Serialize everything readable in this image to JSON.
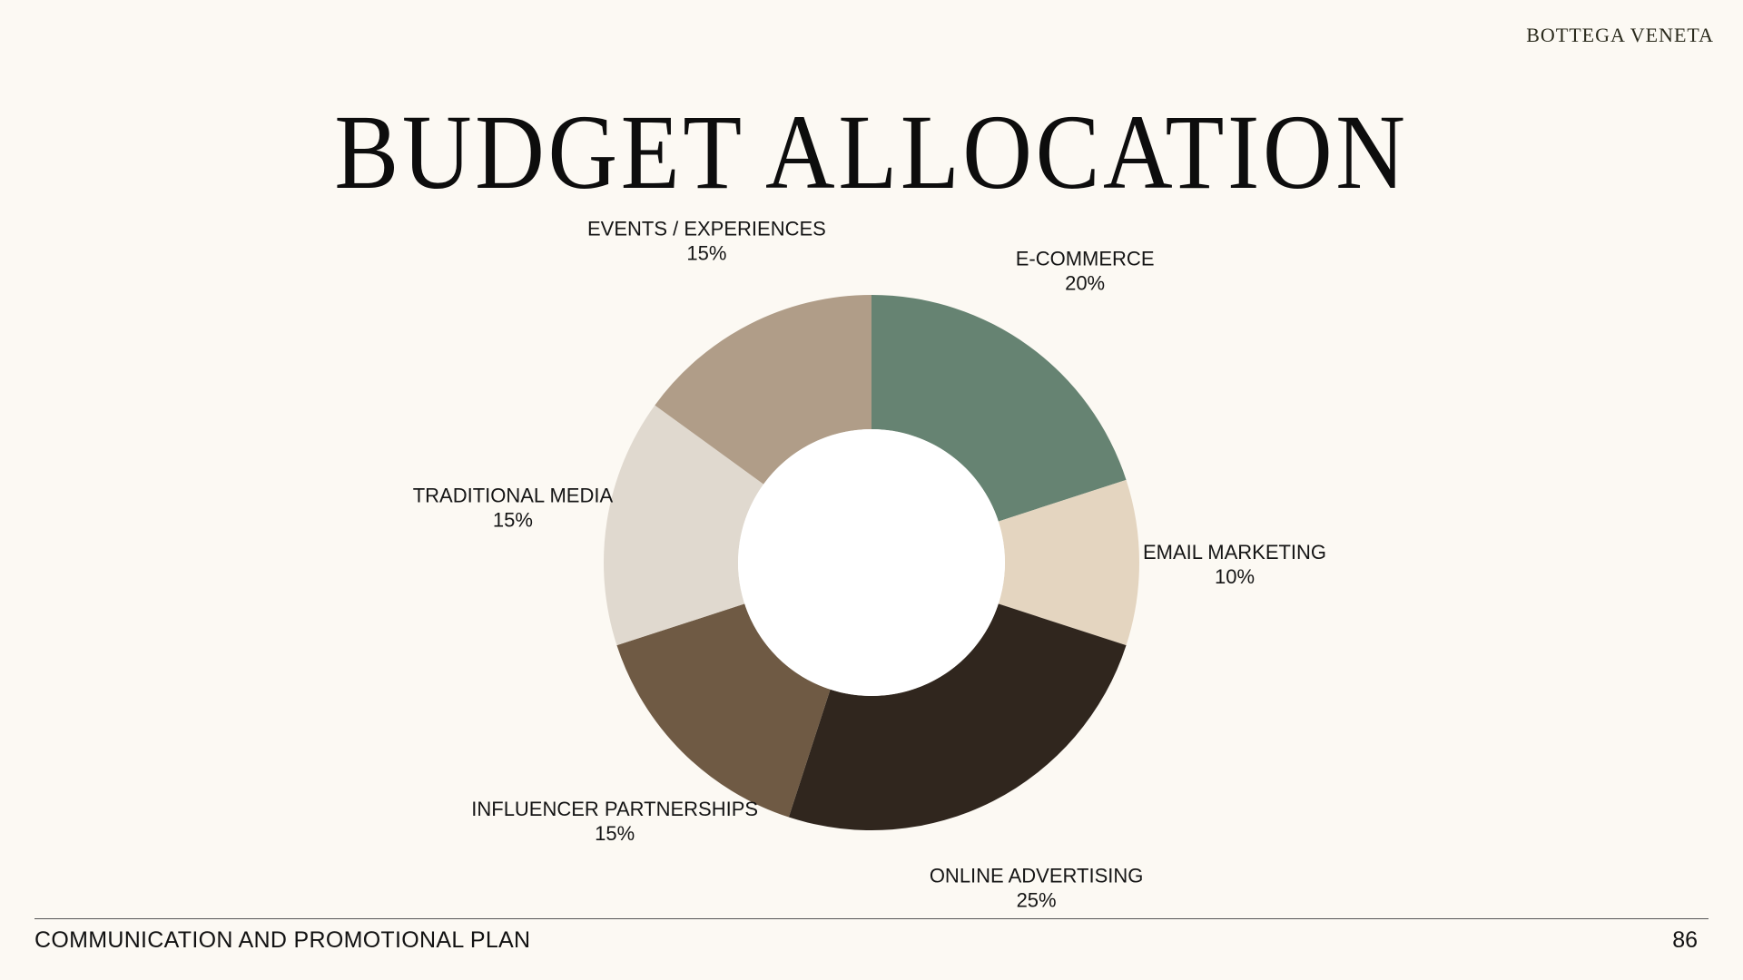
{
  "header": {
    "brand": "BOTTEGA VENETA",
    "title": "BUDGET ALLOCATION"
  },
  "footer": {
    "section": "COMMUNICATION AND PROMOTIONAL PLAN",
    "page_number": "86"
  },
  "chart_data": {
    "type": "pie",
    "style": "donut",
    "title": "BUDGET ALLOCATION",
    "start": "12 o'clock, clockwise",
    "slices": [
      {
        "label": "E-COMMERCE",
        "value": 20,
        "value_label": "20%",
        "color": "#668372"
      },
      {
        "label": "EMAIL MARKETING",
        "value": 10,
        "value_label": "10%",
        "color": "#e4d5c0"
      },
      {
        "label": "ONLINE ADVERTISING",
        "value": 25,
        "value_label": "25%",
        "color": "#30261e"
      },
      {
        "label": "INFLUENCER PARTNERSHIPS",
        "value": 15,
        "value_label": "15%",
        "color": "#6f5a44"
      },
      {
        "label": "TRADITIONAL MEDIA",
        "value": 15,
        "value_label": "15%",
        "color": "#e0d9cf"
      },
      {
        "label": "EVENTS / EXPERIENCES",
        "value": 15,
        "value_label": "15%",
        "color": "#b09d88"
      }
    ]
  }
}
